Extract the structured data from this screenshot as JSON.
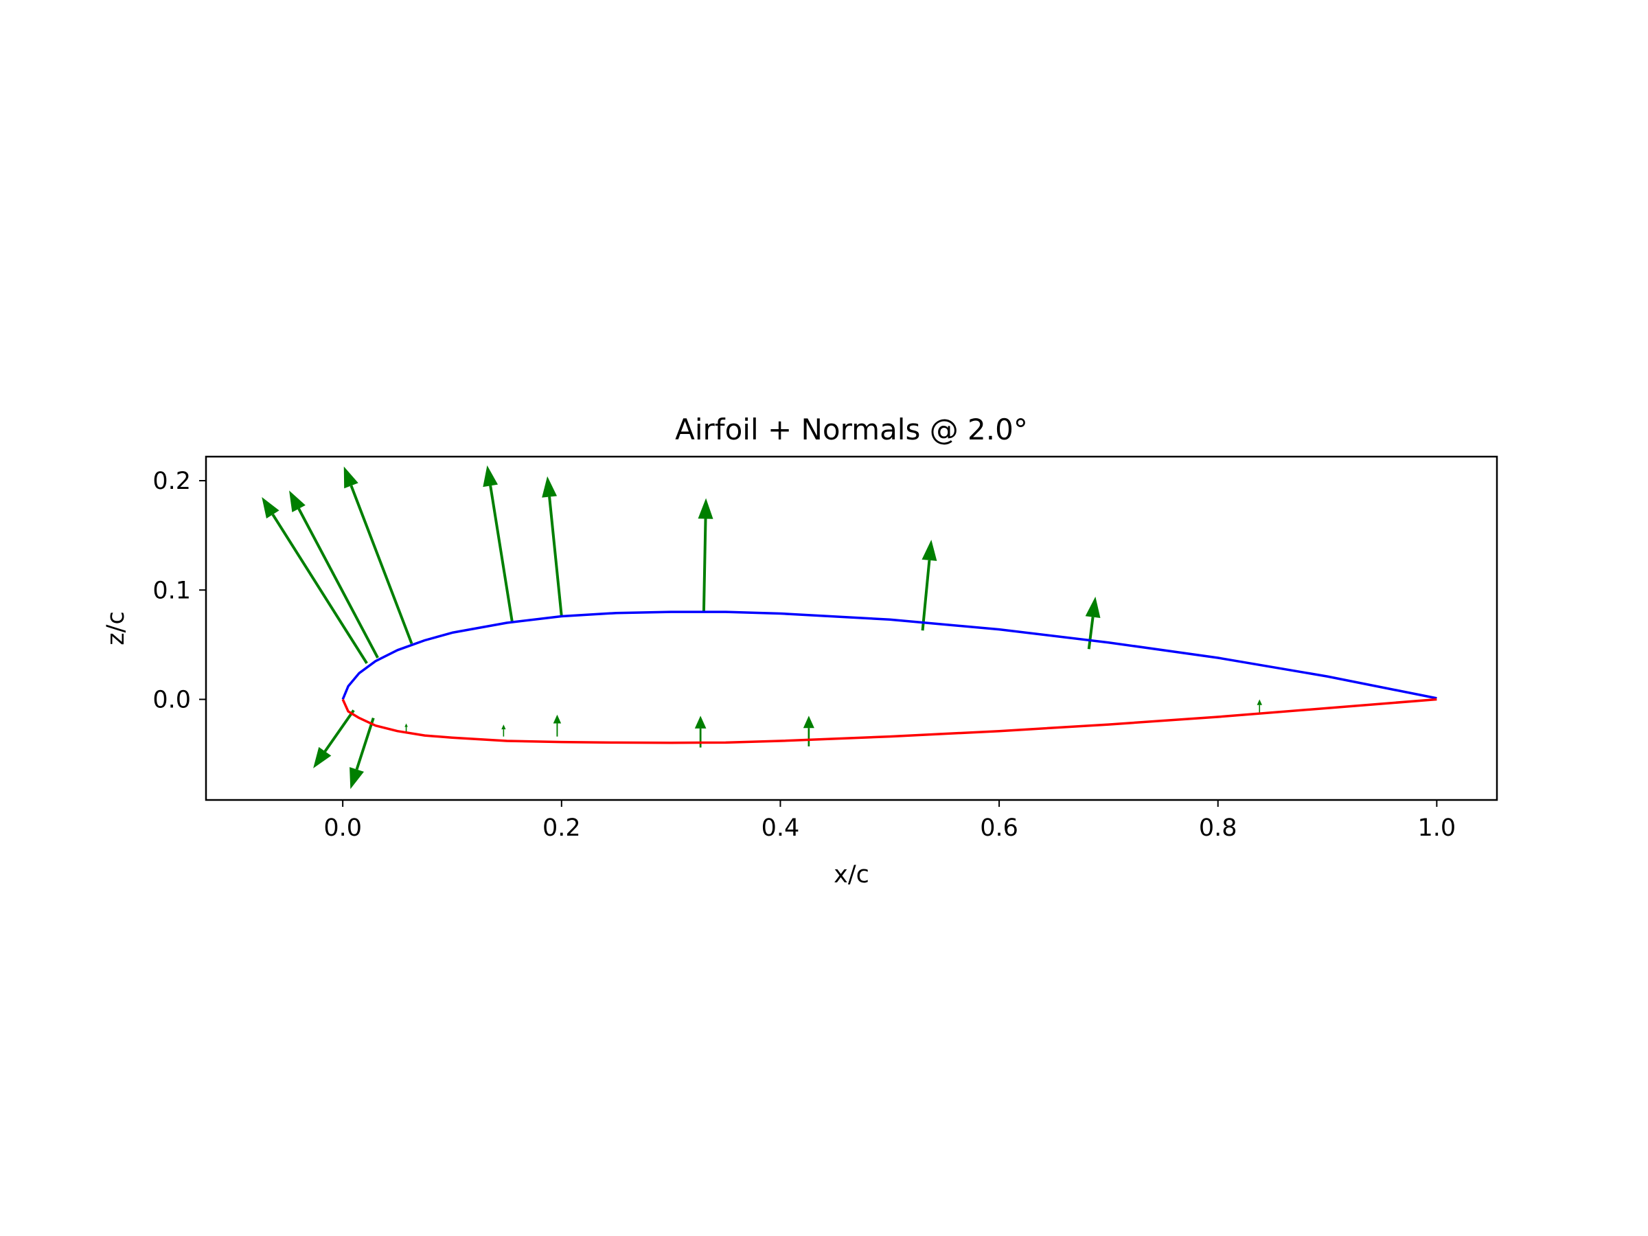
{
  "chart_data": {
    "type": "line",
    "title": "Airfoil + Normals @ 2.0°",
    "xlabel": "x/c",
    "ylabel": "z/c",
    "xlim": [
      -0.125,
      1.055
    ],
    "ylim": [
      -0.092,
      0.222
    ],
    "x_ticks": [
      0.0,
      0.2,
      0.4,
      0.6,
      0.8,
      1.0
    ],
    "x_tick_labels": [
      "0.0",
      "0.2",
      "0.4",
      "0.6",
      "0.8",
      "1.0"
    ],
    "y_ticks": [
      0.0,
      0.1,
      0.2
    ],
    "y_tick_labels": [
      "0.0",
      "0.1",
      "0.2"
    ],
    "grid": false,
    "colors": {
      "upper": "#0000ff",
      "lower": "#ff0000",
      "normals": "#007f00"
    },
    "series": [
      {
        "x": [
          0.0,
          0.005,
          0.015,
          0.03,
          0.05,
          0.075,
          0.1,
          0.15,
          0.2,
          0.25,
          0.3,
          0.35,
          0.4,
          0.5,
          0.6,
          0.7,
          0.8,
          0.9,
          1.0
        ],
        "y": [
          0.0,
          0.012,
          0.024,
          0.035,
          0.045,
          0.054,
          0.061,
          0.07,
          0.076,
          0.079,
          0.08,
          0.08,
          0.0785,
          0.073,
          0.064,
          0.052,
          0.038,
          0.021,
          0.001
        ]
      },
      {
        "x": [
          0.0,
          0.005,
          0.015,
          0.03,
          0.05,
          0.075,
          0.1,
          0.15,
          0.2,
          0.25,
          0.3,
          0.35,
          0.4,
          0.5,
          0.6,
          0.7,
          0.8,
          0.9,
          1.0
        ],
        "y": [
          0.0,
          -0.011,
          -0.017,
          -0.024,
          -0.029,
          -0.033,
          -0.035,
          -0.038,
          -0.039,
          -0.0395,
          -0.0397,
          -0.0395,
          -0.038,
          -0.034,
          -0.029,
          -0.023,
          -0.016,
          -0.008,
          0.0
        ]
      }
    ],
    "normals": [
      {
        "x": 0.022,
        "z": 0.033,
        "dx": -0.096,
        "dz": 0.152
      },
      {
        "x": 0.032,
        "z": 0.038,
        "dx": -0.081,
        "dz": 0.153
      },
      {
        "x": 0.063,
        "z": 0.051,
        "dx": -0.062,
        "dz": 0.162
      },
      {
        "x": 0.155,
        "z": 0.07,
        "dx": -0.023,
        "dz": 0.144
      },
      {
        "x": 0.2,
        "z": 0.076,
        "dx": -0.013,
        "dz": 0.128
      },
      {
        "x": 0.33,
        "z": 0.08,
        "dx": 0.002,
        "dz": 0.104
      },
      {
        "x": 0.53,
        "z": 0.063,
        "dx": 0.008,
        "dz": 0.083
      },
      {
        "x": 0.682,
        "z": 0.046,
        "dx": 0.006,
        "dz": 0.048
      },
      {
        "x": 0.01,
        "z": -0.01,
        "dx": -0.037,
        "dz": -0.053
      },
      {
        "x": 0.028,
        "z": -0.017,
        "dx": -0.021,
        "dz": -0.065
      },
      {
        "x": 0.058,
        "z": -0.03,
        "dx": 0.0,
        "dz": 0.008
      },
      {
        "x": 0.147,
        "z": -0.034,
        "dx": 0.0,
        "dz": 0.011
      },
      {
        "x": 0.196,
        "z": -0.034,
        "dx": 0.0,
        "dz": 0.02
      },
      {
        "x": 0.327,
        "z": -0.044,
        "dx": 0.0,
        "dz": 0.029
      },
      {
        "x": 0.426,
        "z": -0.043,
        "dx": 0.0,
        "dz": 0.028
      },
      {
        "x": 0.838,
        "z": -0.013,
        "dx": 0.0,
        "dz": 0.013
      }
    ]
  }
}
